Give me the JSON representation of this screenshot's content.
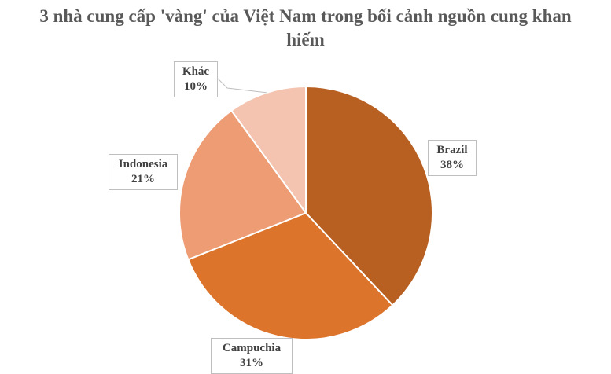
{
  "title": "3 nhà cung cấp 'vàng' của Việt Nam trong bối cảnh nguồn cung khan hiếm",
  "chart_data": {
    "type": "pie",
    "title": "3 nhà cung cấp 'vàng' của Việt Nam trong bối cảnh nguồn cung khan hiếm",
    "start_angle": "12 o'clock",
    "direction": "clockwise",
    "slices": [
      {
        "label": "Brazil",
        "value": 38,
        "value_label": "38%",
        "color": "#b85f22"
      },
      {
        "label": "Campuchia",
        "value": 31,
        "value_label": "31%",
        "color": "#dd742b"
      },
      {
        "label": "Indonesia",
        "value": 21,
        "value_label": "21%",
        "color": "#ee9c74"
      },
      {
        "label": "Khác",
        "value": 10,
        "value_label": "10%",
        "color": "#f4c4b1"
      }
    ]
  }
}
